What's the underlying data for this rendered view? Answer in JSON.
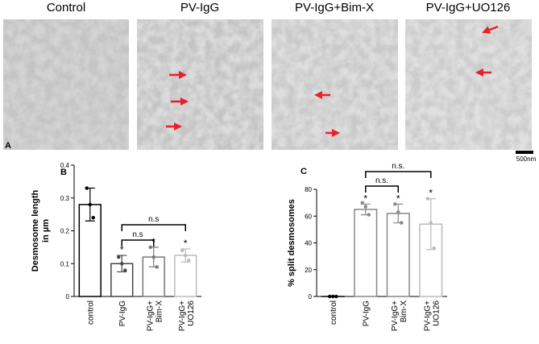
{
  "panel_a": {
    "label": "A",
    "images": [
      "Control",
      "PV-IgG",
      "PV-IgG+Bim-X",
      "PV-IgG+UO126"
    ],
    "scale_bar": "500nm"
  },
  "chart_data": [
    {
      "type": "bar",
      "panel_label": "B",
      "ylabel": [
        "Desmosome length",
        "in µm"
      ],
      "categories": [
        [
          "control"
        ],
        [
          "PV-IgG"
        ],
        [
          "PV-IgG+",
          "Bim-X"
        ],
        [
          "PV-IgG+",
          "UO126"
        ]
      ],
      "values": [
        0.28,
        0.1,
        0.12,
        0.125
      ],
      "errors": [
        0.05,
        0.025,
        0.03,
        0.02
      ],
      "points": [
        [
          0.33,
          0.28,
          0.24
        ],
        [
          0.12,
          0.1,
          0.08
        ],
        [
          0.15,
          0.12,
          0.09
        ],
        [
          0.14,
          0.125,
          0.11
        ]
      ],
      "colors": [
        "#000000",
        "#444444",
        "#777777",
        "#bbbbbb"
      ],
      "annotations": [
        null,
        "*",
        "*",
        "*"
      ],
      "significance": [
        {
          "from": 1,
          "to": 2,
          "label": "n.s"
        },
        {
          "from": 1,
          "to": 3,
          "label": "n.s"
        }
      ],
      "ylim": [
        0,
        0.4
      ],
      "yticks": [
        0,
        0.1,
        0.2,
        0.3,
        0.4
      ]
    },
    {
      "type": "bar",
      "panel_label": "C",
      "ylabel": [
        "% split desmosomes"
      ],
      "categories": [
        [
          "control"
        ],
        [
          "PV-IgG"
        ],
        [
          "PV-IgG+",
          "Bim-X"
        ],
        [
          "PV-IgG+",
          "UO126"
        ]
      ],
      "values": [
        0,
        65,
        62,
        54
      ],
      "errors": [
        0,
        4,
        7,
        19
      ],
      "points": [
        [
          0,
          0,
          0
        ],
        [
          70,
          67,
          61
        ],
        [
          69,
          63,
          55
        ],
        [
          73,
          55,
          36
        ]
      ],
      "colors": [
        "#000000",
        "#888888",
        "#888888",
        "#bbbbbb"
      ],
      "annotations": [
        null,
        "*",
        "*",
        "*"
      ],
      "significance": [
        {
          "from": 1,
          "to": 2,
          "label": "n.s."
        },
        {
          "from": 1,
          "to": 3,
          "label": "n.s."
        }
      ],
      "ylim": [
        0,
        80
      ],
      "yticks": [
        0,
        20,
        40,
        60,
        80
      ]
    }
  ]
}
